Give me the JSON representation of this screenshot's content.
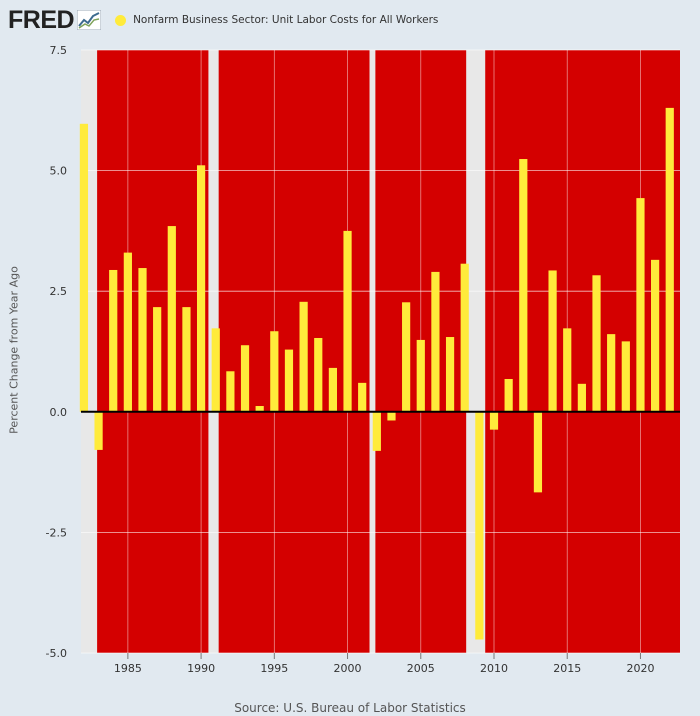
{
  "header": {
    "logo_text": "FRED",
    "logo_icon": "fred-chart-icon",
    "legend_label": "Nonfarm Business Sector: Unit Labor Costs for All Workers"
  },
  "colors": {
    "bar": "#ffeb3b",
    "shade": "#d40000",
    "background": "#e1e9f0",
    "plot_bg": "#e8e8e8"
  },
  "footer": {
    "source": "Source: U.S. Bureau of Labor Statistics"
  },
  "chart_data": {
    "type": "bar",
    "title": "Nonfarm Business Sector: Unit Labor Costs for All Workers",
    "xlabel": "",
    "ylabel": "Percent Change from Year Ago",
    "ylim": [
      -5.0,
      7.5
    ],
    "xlim": [
      1981.8,
      2022.7
    ],
    "yticks": [
      7.5,
      5.0,
      2.5,
      0.0,
      -2.5,
      -5.0
    ],
    "ytick_labels": [
      "7.5",
      "5.0",
      "2.5",
      "0.0",
      "-2.5",
      "-5.0"
    ],
    "xticks": [
      1985,
      1990,
      1995,
      2000,
      2005,
      2010,
      2015,
      2020
    ],
    "xtick_labels": [
      "1985",
      "1990",
      "1995",
      "2000",
      "2005",
      "2010",
      "2015",
      "2020"
    ],
    "grid": true,
    "series": [
      {
        "name": "Nonfarm Business Sector: Unit Labor Costs for All Workers",
        "x": [
          1982,
          1983,
          1984,
          1985,
          1986,
          1987,
          1988,
          1989,
          1990,
          1991,
          1992,
          1993,
          1994,
          1995,
          1996,
          1997,
          1998,
          1999,
          2000,
          2001,
          2002,
          2003,
          2004,
          2005,
          2006,
          2007,
          2008,
          2009,
          2010,
          2011,
          2012,
          2013,
          2014,
          2015,
          2016,
          2017,
          2018,
          2019,
          2020,
          2021,
          2022
        ],
        "values": [
          5.97,
          -0.79,
          2.94,
          3.3,
          2.98,
          2.17,
          3.85,
          2.17,
          5.11,
          1.73,
          0.84,
          1.38,
          0.12,
          1.67,
          1.29,
          2.28,
          1.53,
          0.91,
          3.75,
          0.6,
          -0.81,
          -0.18,
          2.27,
          1.49,
          2.9,
          1.55,
          3.07,
          -4.72,
          -0.37,
          0.68,
          5.24,
          -1.67,
          2.93,
          1.73,
          0.58,
          2.83,
          1.61,
          1.46,
          4.43,
          3.15,
          6.3
        ]
      }
    ],
    "shaded_regions": [
      [
        1982.9,
        1990.5
      ],
      [
        1991.2,
        2001.5
      ],
      [
        2001.9,
        2008.1
      ],
      [
        2009.4,
        2022.7
      ]
    ]
  }
}
